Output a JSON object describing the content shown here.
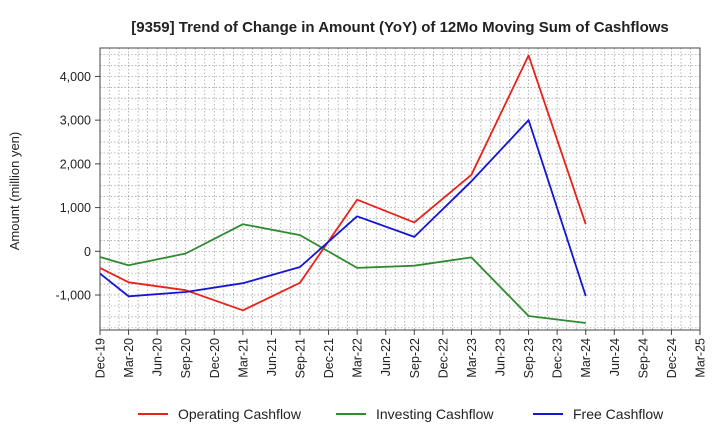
{
  "chart_data": {
    "type": "line",
    "title": "[9359]  Trend of Change in Amount (YoY) of 12Mo Moving Sum of Cashflows",
    "xlabel": "",
    "ylabel": "Amount (million yen)",
    "ylim": [
      -1800,
      4650
    ],
    "yticks": [
      -1000,
      0,
      1000,
      2000,
      3000,
      4000
    ],
    "ytick_labels": [
      "-1,000",
      "0",
      "1,000",
      "2,000",
      "3,000",
      "4,000"
    ],
    "categories": [
      "Dec-19",
      "Mar-20",
      "Jun-20",
      "Sep-20",
      "Dec-20",
      "Mar-21",
      "Jun-21",
      "Sep-21",
      "Dec-21",
      "Mar-22",
      "Jun-22",
      "Sep-22",
      "Dec-22",
      "Mar-23",
      "Jun-23",
      "Sep-23",
      "Dec-23",
      "Mar-24",
      "Jun-24",
      "Sep-24",
      "Dec-24",
      "Mar-25"
    ],
    "grid": true,
    "legend_position": "bottom",
    "series": [
      {
        "name": "Operating Cashflow",
        "color": "#e8221a",
        "values": [
          -380,
          -710,
          null,
          -890,
          null,
          -1350,
          null,
          -720,
          null,
          1180,
          null,
          660,
          null,
          1750,
          null,
          4480,
          null,
          620,
          null,
          null,
          null,
          null
        ]
      },
      {
        "name": "Investing Cashflow",
        "color": "#2e8b2e",
        "values": [
          -130,
          -320,
          null,
          -50,
          null,
          620,
          null,
          370,
          null,
          -380,
          null,
          -330,
          null,
          -140,
          null,
          -1480,
          null,
          -1640,
          null,
          null,
          null,
          null
        ]
      },
      {
        "name": "Free Cashflow",
        "color": "#1515d4",
        "values": [
          -510,
          -1030,
          null,
          -930,
          null,
          -730,
          null,
          -360,
          null,
          800,
          null,
          330,
          null,
          1600,
          null,
          3000,
          null,
          -1020,
          null,
          null,
          null,
          null
        ]
      }
    ]
  }
}
